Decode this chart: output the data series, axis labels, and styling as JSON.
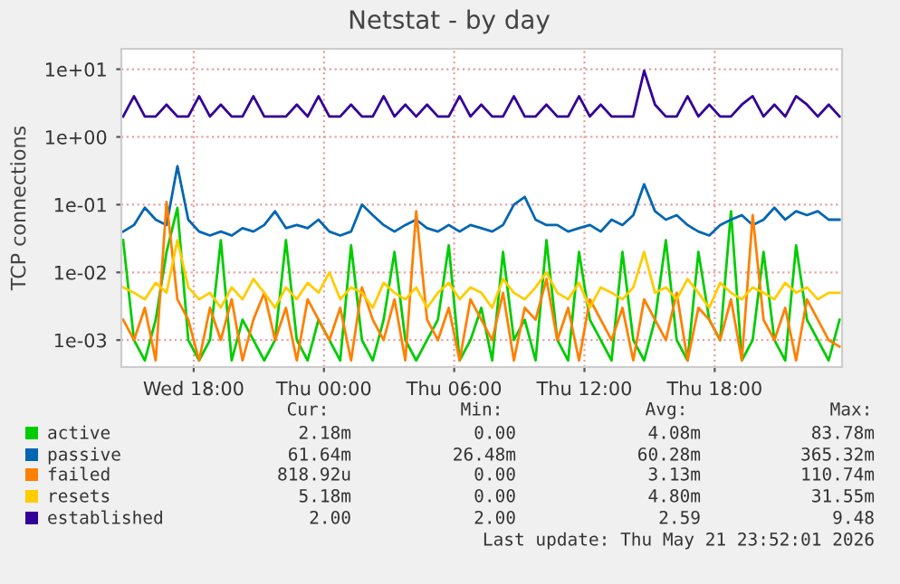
{
  "chart_data": {
    "type": "line",
    "title": "Netstat - by day",
    "ylabel": "TCP connections",
    "x": [
      "2026-05-20T14:45",
      "2026-05-20T15:15",
      "2026-05-20T15:45",
      "2026-05-20T16:15",
      "2026-05-20T16:45",
      "2026-05-20T17:15",
      "2026-05-20T17:45",
      "2026-05-20T18:15",
      "2026-05-20T18:45",
      "2026-05-20T19:15",
      "2026-05-20T19:45",
      "2026-05-20T20:15",
      "2026-05-20T20:45",
      "2026-05-20T21:15",
      "2026-05-20T21:45",
      "2026-05-20T22:15",
      "2026-05-20T22:45",
      "2026-05-20T23:15",
      "2026-05-20T23:45",
      "2026-05-21T00:15",
      "2026-05-21T00:45",
      "2026-05-21T01:15",
      "2026-05-21T01:45",
      "2026-05-21T02:15",
      "2026-05-21T02:45",
      "2026-05-21T03:15",
      "2026-05-21T03:45",
      "2026-05-21T04:15",
      "2026-05-21T04:45",
      "2026-05-21T05:15",
      "2026-05-21T05:45",
      "2026-05-21T06:15",
      "2026-05-21T06:45",
      "2026-05-21T07:15",
      "2026-05-21T07:45",
      "2026-05-21T08:15",
      "2026-05-21T08:45",
      "2026-05-21T09:15",
      "2026-05-21T09:45",
      "2026-05-21T10:15",
      "2026-05-21T10:45",
      "2026-05-21T11:15",
      "2026-05-21T11:45",
      "2026-05-21T12:15",
      "2026-05-21T12:45",
      "2026-05-21T13:15",
      "2026-05-21T13:45",
      "2026-05-21T14:15",
      "2026-05-21T14:45",
      "2026-05-21T15:15",
      "2026-05-21T15:45",
      "2026-05-21T16:15",
      "2026-05-21T16:45",
      "2026-05-21T17:15",
      "2026-05-21T17:45",
      "2026-05-21T18:15",
      "2026-05-21T18:45",
      "2026-05-21T19:15",
      "2026-05-21T19:45",
      "2026-05-21T20:15",
      "2026-05-21T20:45",
      "2026-05-21T21:15",
      "2026-05-21T21:45",
      "2026-05-21T22:15",
      "2026-05-21T22:45",
      "2026-05-21T23:15",
      "2026-05-21T23:45"
    ],
    "series": [
      {
        "name": "active",
        "color": "#00cc00",
        "values": [
          0.03,
          0.001,
          0.0005,
          0.002,
          0.02,
          0.09,
          0.001,
          0.0005,
          0.001,
          0.03,
          0.0005,
          0.002,
          0.001,
          0.0005,
          0.001,
          0.03,
          0.001,
          0.0005,
          0.002,
          0.001,
          0.0005,
          0.025,
          0.001,
          0.0005,
          0.002,
          0.02,
          0.001,
          0.0005,
          0.001,
          0.002,
          0.025,
          0.0005,
          0.001,
          0.003,
          0.0005,
          0.02,
          0.001,
          0.002,
          0.0005,
          0.03,
          0.001,
          0.0005,
          0.02,
          0.002,
          0.001,
          0.0005,
          0.02,
          0.001,
          0.0005,
          0.002,
          0.03,
          0.001,
          0.0005,
          0.02,
          0.002,
          0.001,
          0.08,
          0.0005,
          0.001,
          0.02,
          0.001,
          0.0005,
          0.025,
          0.002,
          0.001,
          0.0005,
          0.002
        ]
      },
      {
        "name": "passive",
        "color": "#0066b3",
        "values": [
          0.04,
          0.05,
          0.09,
          0.06,
          0.05,
          0.37,
          0.06,
          0.04,
          0.035,
          0.04,
          0.035,
          0.045,
          0.04,
          0.05,
          0.08,
          0.045,
          0.05,
          0.045,
          0.06,
          0.04,
          0.035,
          0.04,
          0.1,
          0.07,
          0.05,
          0.04,
          0.05,
          0.06,
          0.045,
          0.04,
          0.05,
          0.04,
          0.05,
          0.045,
          0.04,
          0.05,
          0.1,
          0.13,
          0.06,
          0.05,
          0.05,
          0.04,
          0.045,
          0.05,
          0.04,
          0.06,
          0.05,
          0.07,
          0.2,
          0.08,
          0.06,
          0.07,
          0.05,
          0.04,
          0.035,
          0.05,
          0.06,
          0.07,
          0.05,
          0.06,
          0.09,
          0.06,
          0.08,
          0.07,
          0.08,
          0.06,
          0.06
        ]
      },
      {
        "name": "failed",
        "color": "#ff8000",
        "values": [
          0.002,
          0.001,
          0.003,
          0.0005,
          0.11,
          0.004,
          0.002,
          0.0005,
          0.003,
          0.001,
          0.004,
          0.0005,
          0.002,
          0.005,
          0.001,
          0.003,
          0.0005,
          0.004,
          0.002,
          0.001,
          0.003,
          0.0005,
          0.006,
          0.002,
          0.001,
          0.004,
          0.0005,
          0.08,
          0.002,
          0.001,
          0.003,
          0.0005,
          0.004,
          0.002,
          0.001,
          0.005,
          0.0005,
          0.003,
          0.002,
          0.008,
          0.001,
          0.003,
          0.0005,
          0.004,
          0.002,
          0.001,
          0.003,
          0.0005,
          0.004,
          0.002,
          0.001,
          0.005,
          0.0005,
          0.003,
          0.002,
          0.001,
          0.004,
          0.0005,
          0.07,
          0.002,
          0.001,
          0.003,
          0.0005,
          0.004,
          0.002,
          0.001,
          0.0008
        ]
      },
      {
        "name": "resets",
        "color": "#ffcc00",
        "values": [
          0.006,
          0.005,
          0.004,
          0.007,
          0.005,
          0.03,
          0.006,
          0.004,
          0.005,
          0.003,
          0.006,
          0.004,
          0.008,
          0.005,
          0.003,
          0.006,
          0.004,
          0.007,
          0.005,
          0.01,
          0.004,
          0.006,
          0.005,
          0.003,
          0.007,
          0.005,
          0.004,
          0.006,
          0.003,
          0.005,
          0.007,
          0.004,
          0.006,
          0.005,
          0.003,
          0.008,
          0.005,
          0.004,
          0.006,
          0.01,
          0.005,
          0.004,
          0.007,
          0.003,
          0.006,
          0.005,
          0.004,
          0.006,
          0.02,
          0.005,
          0.006,
          0.004,
          0.008,
          0.005,
          0.003,
          0.007,
          0.005,
          0.004,
          0.006,
          0.005,
          0.004,
          0.007,
          0.005,
          0.006,
          0.004,
          0.005,
          0.005
        ]
      },
      {
        "name": "established",
        "color": "#330099",
        "values": [
          2,
          4,
          2,
          2,
          3,
          2,
          2,
          4,
          2,
          3,
          2,
          2,
          4,
          2,
          2,
          2,
          3,
          2,
          4,
          2,
          2,
          3,
          2,
          2,
          4,
          2,
          3,
          2,
          3,
          2,
          2,
          4,
          2,
          3,
          2,
          2,
          4,
          2,
          2,
          3,
          2,
          2,
          4,
          2,
          3,
          2,
          2,
          2,
          9.48,
          3,
          2,
          2,
          4,
          2,
          3,
          2,
          2,
          3,
          4,
          2,
          3,
          2,
          4,
          3,
          2,
          3,
          2
        ]
      }
    ],
    "log": true,
    "xlim": [
      "2026-05-20T14:40",
      "2026-05-21T23:52"
    ],
    "ylim": [
      0.0004,
      20
    ],
    "xticks": [
      {
        "value": "2026-05-20T18:00",
        "label": "Wed 18:00"
      },
      {
        "value": "2026-05-21T00:00",
        "label": "Thu 00:00"
      },
      {
        "value": "2026-05-21T06:00",
        "label": "Thu 06:00"
      },
      {
        "value": "2026-05-21T12:00",
        "label": "Thu 12:00"
      },
      {
        "value": "2026-05-21T18:00",
        "label": "Thu 18:00"
      }
    ],
    "yticks": [
      {
        "value": 0.001,
        "label": "1e-03"
      },
      {
        "value": 0.01,
        "label": "1e-02"
      },
      {
        "value": 0.1,
        "label": "1e-01"
      },
      {
        "value": 1,
        "label": "1e+00"
      },
      {
        "value": 10,
        "label": "1e+01"
      }
    ],
    "grid": true,
    "legend": "bottom",
    "marker": "none",
    "line_style": "solid",
    "annotations": [
      "Cur:",
      "Min:",
      "Avg:",
      "Max:",
      "2.18m",
      "0.00",
      "4.08m",
      "83.78m",
      "61.64m",
      "26.48m",
      "60.28m",
      "365.32m",
      "818.92u",
      "0.00",
      "3.13m",
      "110.74m",
      "5.18m",
      "0.00",
      "4.80m",
      "31.55m",
      "2.00",
      "2.00",
      "2.59",
      "9.48",
      "Last update: Thu May 21 23:52:01 2026"
    ]
  }
}
